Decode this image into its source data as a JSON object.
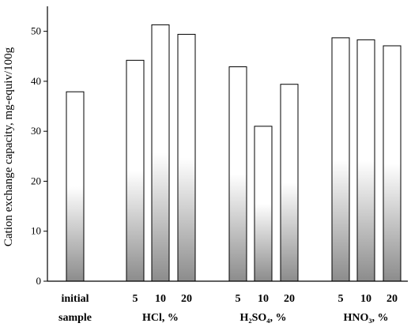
{
  "chart_data": {
    "type": "bar",
    "ylabel": "Cation exchange capacity, mg-equiv/100g",
    "ylim": [
      0,
      55
    ],
    "yticks": [
      0,
      10,
      20,
      30,
      40,
      50
    ],
    "grid": false,
    "fill": {
      "top": "#ffffff",
      "bottom": "#8c8c8c",
      "stroke": "#000000"
    },
    "groups": [
      {
        "label": [
          "initial",
          "sample"
        ],
        "bars": [
          {
            "label": "",
            "value": 37.9
          }
        ]
      },
      {
        "label": [
          "HCl, %"
        ],
        "bars": [
          {
            "label": "5",
            "value": 44.2
          },
          {
            "label": "10",
            "value": 51.3
          },
          {
            "label": "20",
            "value": 49.4
          }
        ]
      },
      {
        "label": [
          "H₂SO₄, %"
        ],
        "bars": [
          {
            "label": "5",
            "value": 42.9
          },
          {
            "label": "10",
            "value": 31.0
          },
          {
            "label": "20",
            "value": 39.4
          }
        ]
      },
      {
        "label": [
          "HNO₃, %"
        ],
        "bars": [
          {
            "label": "5",
            "value": 48.7
          },
          {
            "label": "10",
            "value": 48.3
          },
          {
            "label": "20",
            "value": 47.1
          }
        ]
      }
    ]
  }
}
